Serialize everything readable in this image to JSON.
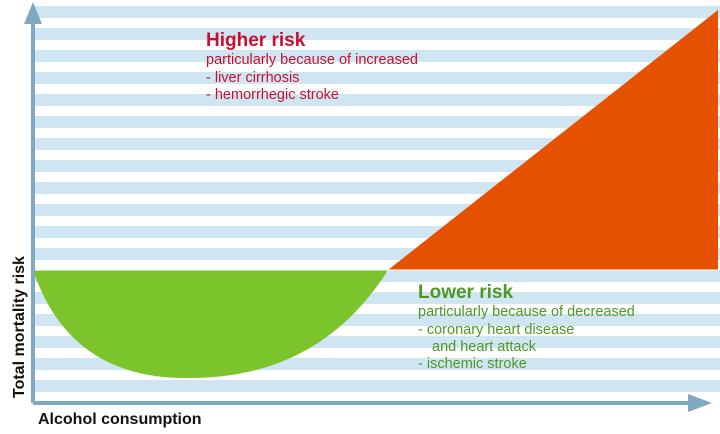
{
  "colors": {
    "stripe": "#cfe6f2",
    "axis": "#7fa8c3",
    "high_fill": "#e65100",
    "low_fill": "#7cc42c",
    "high_text": "#c8102e",
    "low_text": "#4a9a24"
  },
  "diagram": {
    "higher_risk": {
      "heading": "Higher risk",
      "lines": [
        "particularly because of increased",
        "- liver cirrhosis",
        "- hemorrhegic stroke"
      ]
    },
    "lower_risk": {
      "heading": "Lower risk",
      "lines": [
        "particularly because of decreased",
        "- coronary heart disease",
        "and heart attack",
        "- ischemic stroke"
      ]
    },
    "x_axis_label": "Alcohol consumption",
    "y_axis_label": "Total mortality risk"
  }
}
